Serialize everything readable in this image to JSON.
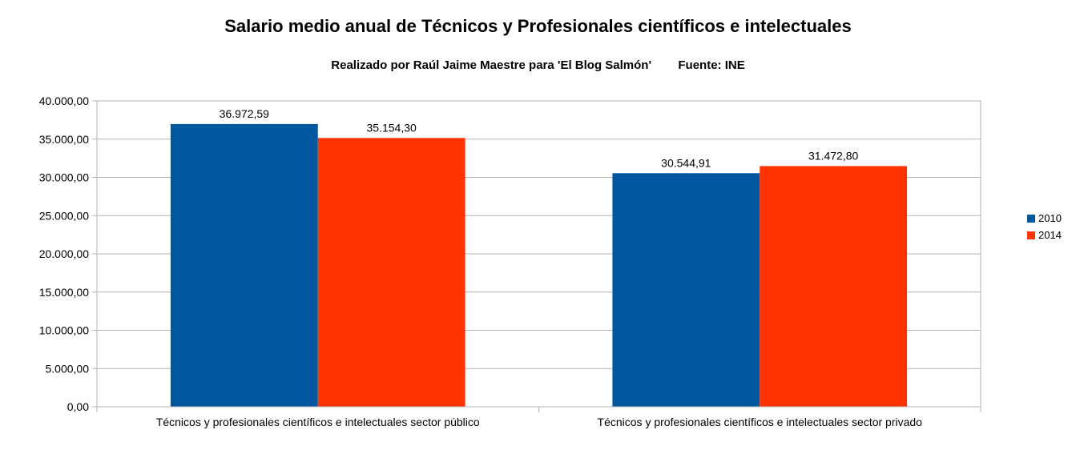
{
  "chart_data": {
    "type": "bar",
    "title": "Salario medio anual de Técnicos y Profesionales científicos e intelectuales",
    "subtitle": "Realizado por Raúl Jaime Maestre para 'El Blog Salmón'        Fuente: INE",
    "categories": [
      "Técnicos y profesionales científicos e intelectuales sector público",
      "Técnicos y profesionales científicos e intelectuales sector privado"
    ],
    "series": [
      {
        "name": "2010",
        "color": "#01589f",
        "values": [
          36972.59,
          30544.91
        ],
        "value_labels": [
          "36.972,59",
          "30.544,91"
        ]
      },
      {
        "name": "2014",
        "color": "#ff3300",
        "values": [
          35154.3,
          31472.8
        ],
        "value_labels": [
          "35.154,30",
          "31.472,80"
        ]
      }
    ],
    "ylim": [
      0,
      40000
    ],
    "y_ticks": [
      {
        "value": 0,
        "label": "0,00"
      },
      {
        "value": 5000,
        "label": "5.000,00"
      },
      {
        "value": 10000,
        "label": "10.000,00"
      },
      {
        "value": 15000,
        "label": "15.000,00"
      },
      {
        "value": 20000,
        "label": "20.000,00"
      },
      {
        "value": 25000,
        "label": "25.000,00"
      },
      {
        "value": 30000,
        "label": "30.000,00"
      },
      {
        "value": 35000,
        "label": "35.000,00"
      },
      {
        "value": 40000,
        "label": "40.000,00"
      }
    ],
    "grid": true,
    "legend_position": "right",
    "xlabel": "",
    "ylabel": ""
  }
}
